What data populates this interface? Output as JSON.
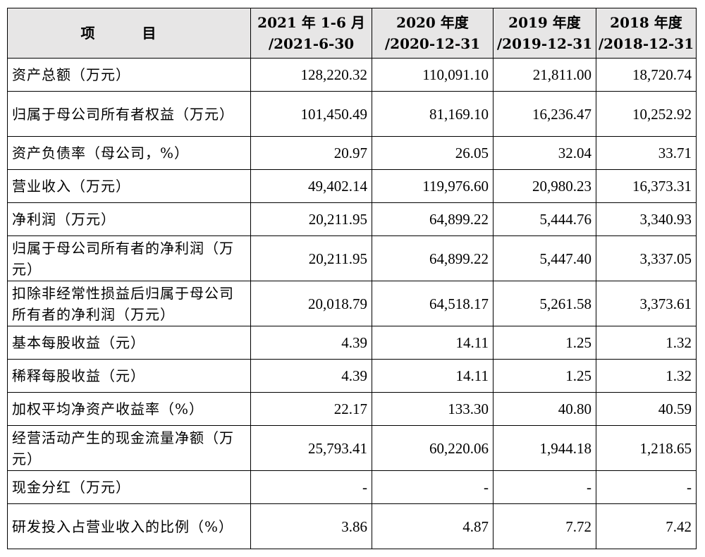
{
  "header": {
    "item": "项 目",
    "col1_line1": "2021 年 1-6 月",
    "col1_line2": "/2021-6-30",
    "col2_line1": "2020 年度",
    "col2_line2": "/2020-12-31",
    "col3_line1": "2019 年度",
    "col3_line2": "/2019-12-31",
    "col4_line1": "2018 年度",
    "col4_line2": "/2018-12-31"
  },
  "rows": [
    {
      "label": "资产总额（万元）",
      "v1": "128,220.32",
      "v2": "110,091.10",
      "v3": "21,811.00",
      "v4": "18,720.74"
    },
    {
      "label": "归属于母公司所有者权益（万元）",
      "v1": "101,450.49",
      "v2": "81,169.10",
      "v3": "16,236.47",
      "v4": "10,252.92"
    },
    {
      "label": "资产负债率（母公司，%）",
      "v1": "20.97",
      "v2": "26.05",
      "v3": "32.04",
      "v4": "33.71"
    },
    {
      "label": "营业收入（万元）",
      "v1": "49,402.14",
      "v2": "119,976.60",
      "v3": "20,980.23",
      "v4": "16,373.31"
    },
    {
      "label": "净利润（万元）",
      "v1": "20,211.95",
      "v2": "64,899.22",
      "v3": "5,444.76",
      "v4": "3,340.93"
    },
    {
      "label": "归属于母公司所有者的净利润（万元）",
      "v1": "20,211.95",
      "v2": "64,899.22",
      "v3": "5,447.40",
      "v4": "3,337.05"
    },
    {
      "label": "扣除非经常性损益后归属于母公司所有者的净利润（万元）",
      "v1": "20,018.79",
      "v2": "64,518.17",
      "v3": "5,261.58",
      "v4": "3,373.61"
    },
    {
      "label": "基本每股收益（元）",
      "v1": "4.39",
      "v2": "14.11",
      "v3": "1.25",
      "v4": "1.32"
    },
    {
      "label": "稀释每股收益（元）",
      "v1": "4.39",
      "v2": "14.11",
      "v3": "1.25",
      "v4": "1.32"
    },
    {
      "label": "加权平均净资产收益率（%）",
      "v1": "22.17",
      "v2": "133.30",
      "v3": "40.80",
      "v4": "40.59"
    },
    {
      "label": "经营活动产生的现金流量净额（万元）",
      "v1": "25,793.41",
      "v2": "60,220.06",
      "v3": "1,944.18",
      "v4": "1,218.65"
    },
    {
      "label": "现金分红（万元）",
      "v1": "-",
      "v2": "-",
      "v3": "-",
      "v4": "-"
    },
    {
      "label": "研发投入占营业收入的比例（%）",
      "v1": "3.86",
      "v2": "4.87",
      "v3": "7.72",
      "v4": "7.42"
    }
  ]
}
